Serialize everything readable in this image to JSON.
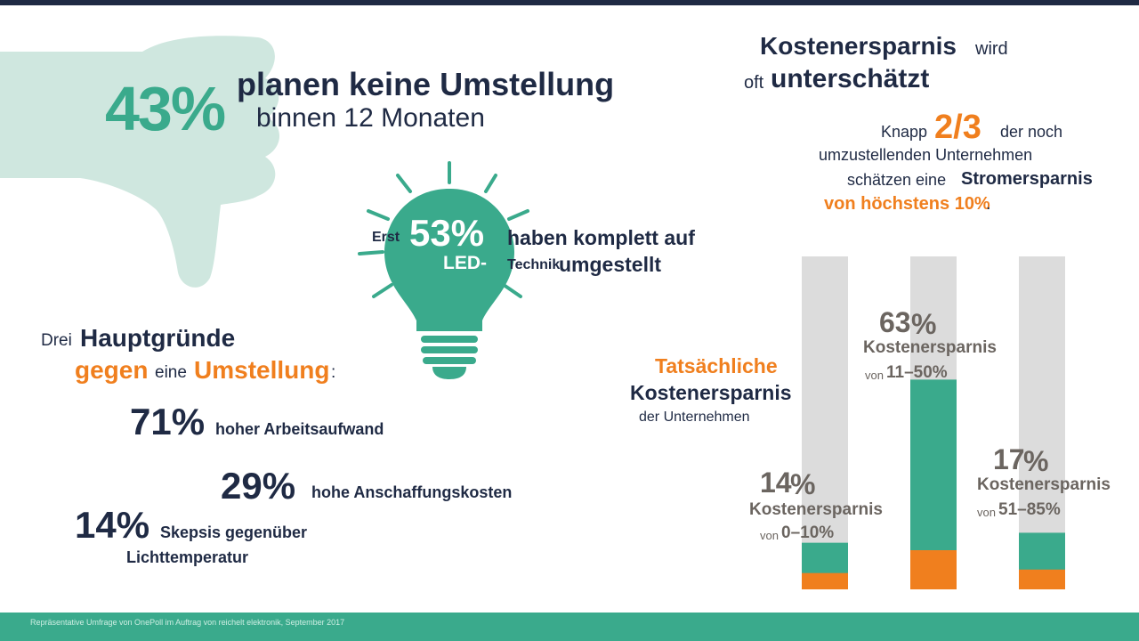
{
  "header": {
    "big_pct": "43%",
    "line1": "planen keine Umstellung",
    "line2": "binnen 12 Monaten"
  },
  "bulb": {
    "prefix": "Erst",
    "pct": "53%",
    "text1": "haben komplett auf",
    "led": "LED-",
    "technik": "Technik",
    "umgestellt": "umgestellt"
  },
  "reasons": {
    "title_drei": "Drei",
    "title_haupt": "Hauptgründe",
    "title_gegen": "gegen",
    "title_eine": "eine",
    "title_umst": "Umstellung",
    "title_colon": ":",
    "items": [
      {
        "pct": "71%",
        "label": "hoher Arbeitsaufwand"
      },
      {
        "pct": "29%",
        "label": "hohe Anschaffungskosten"
      },
      {
        "pct": "14%",
        "label": "Skepsis gegenüber",
        "label2": "Lichttemperatur"
      }
    ]
  },
  "savings": {
    "title_a": "Kostenersparnis",
    "title_b": "wird",
    "title_c": "oft",
    "title_d": "unterschätzt",
    "knapp": "Knapp",
    "frac": "2/3",
    "der_noch": "der noch",
    "line2": "umzustellenden Unternehmen",
    "line3a": "schätzen eine",
    "line3b": "Stromersparnis",
    "line4": "von höchstens 10%",
    "dot": "."
  },
  "chart_label": {
    "l1": "Tatsächliche",
    "l2": "Kostenersparnis",
    "l3": "der Unternehmen"
  },
  "chart_data": {
    "type": "bar",
    "categories": [
      "0–10%",
      "11–50%",
      "51–85%"
    ],
    "values": [
      14,
      63,
      17
    ],
    "unit": "%",
    "ylim": [
      0,
      100
    ],
    "series_label": "Kostenersparnis",
    "prefix": "von",
    "colors": {
      "track": "#dcdcdc",
      "fill": "#3aaa8c",
      "accent": "#f07f1e"
    }
  },
  "footer": {
    "source": "Repräsentative Umfrage von OnePoll im Auftrag von reichelt elektronik, September 2017"
  }
}
